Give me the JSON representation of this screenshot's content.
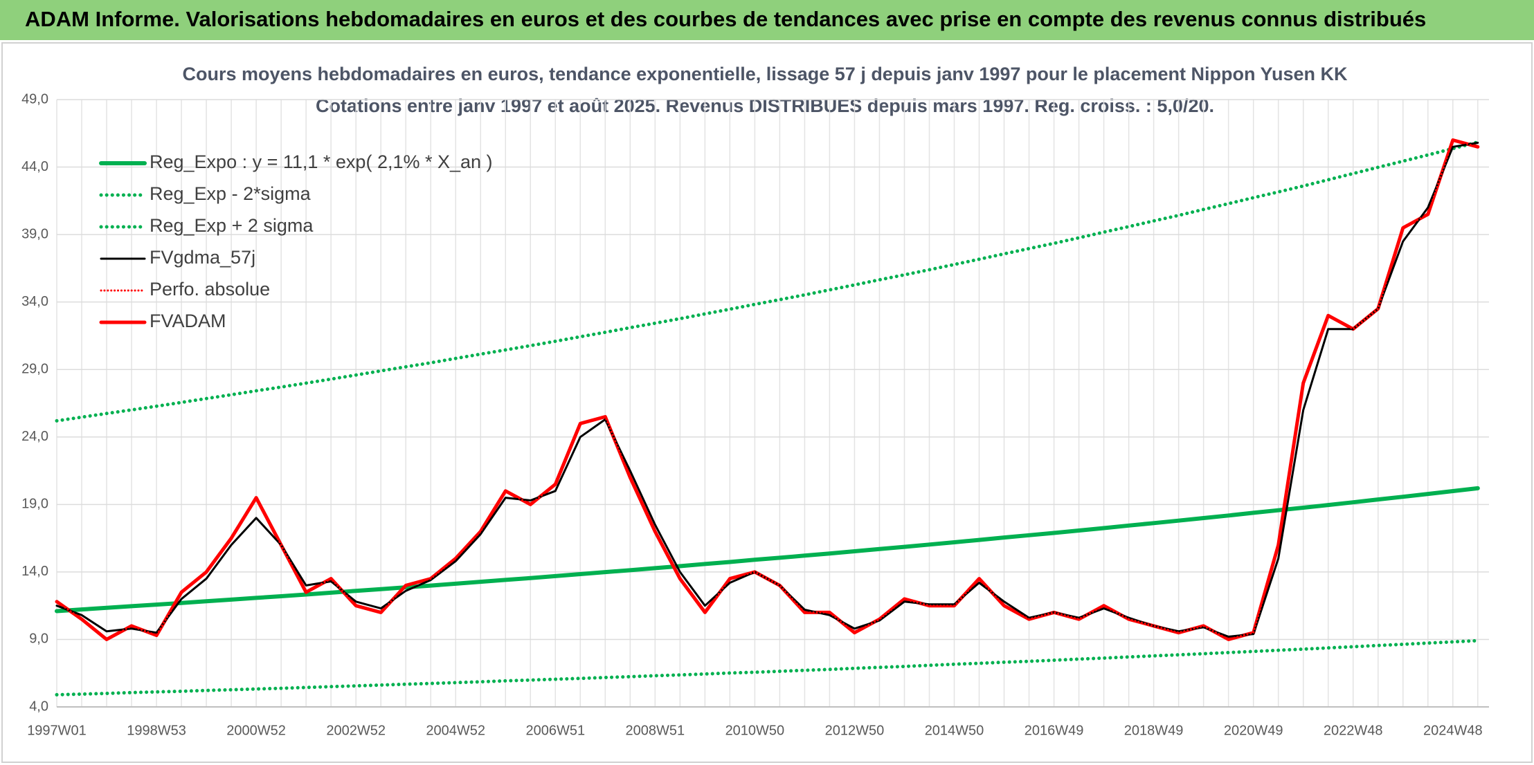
{
  "page_title": "ADAM Informe. Valorisations hebdomadaires en euros et des courbes de tendances avec prise en compte des revenus connus distribués",
  "chart_data": {
    "type": "line",
    "title": "Cours moyens hebdomadaires en euros, tendance exponentielle, lissage 57 j depuis janv 1997 pour le placement Nippon Yusen KK",
    "subtitle": "Cotations entre janv 1997 et août 2025. Revenus DISTRIBUES depuis mars 1997. Reg. croiss. : 5,0/20.",
    "categories": [
      "1997W01",
      null,
      null,
      null,
      "1998W53",
      null,
      null,
      null,
      "2000W52",
      null,
      null,
      null,
      "2002W52",
      null,
      null,
      null,
      "2004W52",
      null,
      null,
      null,
      "2006W51",
      null,
      null,
      null,
      "2008W51",
      null,
      null,
      null,
      "2010W50",
      null,
      null,
      null,
      "2012W50",
      null,
      null,
      null,
      "2014W50",
      null,
      null,
      null,
      "2016W49",
      null,
      null,
      null,
      "2018W49",
      null,
      null,
      null,
      "2020W49",
      null,
      null,
      null,
      "2022W48",
      null,
      null,
      null,
      "2024W48",
      null
    ],
    "ylim": [
      4,
      49
    ],
    "yticks": [
      {
        "value": 4,
        "label": "4,0"
      },
      {
        "value": 9,
        "label": "9,0"
      },
      {
        "value": 14,
        "label": "14,0"
      },
      {
        "value": 19,
        "label": "19,0"
      },
      {
        "value": 24,
        "label": "24,0"
      },
      {
        "value": 29,
        "label": "29,0"
      },
      {
        "value": 34,
        "label": "34,0"
      },
      {
        "value": 39,
        "label": "39,0"
      },
      {
        "value": 44,
        "label": "44,0"
      },
      {
        "value": 49,
        "label": "49,0"
      }
    ],
    "grid": true,
    "legend": "upper-left",
    "series": [
      {
        "name": "Reg_Expo : y = 11,1 * exp( 2,1% *  X_an )",
        "color": "#00b050",
        "style": "solid",
        "width": 6,
        "values": [
          11.1,
          11.22,
          11.34,
          11.46,
          11.58,
          11.7,
          11.83,
          11.95,
          12.08,
          12.2,
          12.33,
          12.46,
          12.6,
          12.73,
          12.86,
          12.99,
          13.13,
          13.27,
          13.41,
          13.55,
          13.69,
          13.84,
          13.99,
          14.13,
          14.28,
          14.43,
          14.59,
          14.74,
          14.9,
          15.05,
          15.21,
          15.37,
          15.53,
          15.7,
          15.86,
          16.03,
          16.2,
          16.37,
          16.55,
          16.72,
          16.89,
          17.07,
          17.25,
          17.44,
          17.62,
          17.8,
          17.99,
          18.18,
          18.38,
          18.57,
          18.76,
          18.96,
          19.16,
          19.37,
          19.57,
          19.78,
          19.99,
          20.2
        ]
      },
      {
        "name": "Reg_Exp - 2*sigma",
        "color": "#00b050",
        "style": "dotted",
        "width": 5,
        "values": [
          4.9,
          4.95,
          5.0,
          5.06,
          5.11,
          5.16,
          5.22,
          5.27,
          5.33,
          5.38,
          5.44,
          5.5,
          5.56,
          5.62,
          5.68,
          5.74,
          5.8,
          5.86,
          5.93,
          5.99,
          6.05,
          6.11,
          6.18,
          6.24,
          6.31,
          6.37,
          6.44,
          6.51,
          6.57,
          6.64,
          6.71,
          6.78,
          6.86,
          6.93,
          7.0,
          7.08,
          7.16,
          7.23,
          7.31,
          7.38,
          7.46,
          7.54,
          7.62,
          7.7,
          7.78,
          7.86,
          7.94,
          8.03,
          8.11,
          8.2,
          8.28,
          8.37,
          8.46,
          8.55,
          8.64,
          8.73,
          8.82,
          8.91
        ]
      },
      {
        "name": "Reg_Exp + 2 sigma",
        "color": "#00b050",
        "style": "dotted",
        "width": 5,
        "values": [
          25.2,
          25.47,
          25.74,
          26.01,
          26.28,
          26.56,
          26.85,
          27.13,
          27.42,
          27.7,
          27.99,
          28.29,
          28.59,
          28.9,
          29.2,
          29.5,
          29.82,
          30.14,
          30.45,
          30.77,
          31.09,
          31.43,
          31.76,
          32.1,
          32.43,
          32.77,
          33.12,
          33.47,
          33.83,
          34.18,
          34.53,
          34.9,
          35.27,
          35.65,
          36.02,
          36.39,
          36.78,
          37.17,
          37.57,
          37.96,
          38.35,
          38.76,
          39.18,
          39.59,
          40.01,
          40.42,
          40.86,
          41.29,
          41.73,
          42.16,
          42.6,
          43.06,
          43.52,
          43.98,
          44.44,
          44.9,
          45.37,
          45.85
        ]
      },
      {
        "name": "FVgdma_57j",
        "color": "#000000",
        "style": "solid",
        "width": 3,
        "values": [
          11.5,
          10.8,
          9.6,
          9.8,
          9.5,
          12.0,
          13.5,
          16.0,
          18.0,
          16.0,
          13.0,
          13.3,
          11.8,
          11.3,
          12.6,
          13.4,
          14.8,
          16.8,
          19.5,
          19.3,
          20.0,
          24.0,
          25.3,
          21.5,
          17.5,
          14.0,
          11.5,
          13.2,
          14.0,
          13.0,
          11.2,
          10.8,
          9.8,
          10.4,
          11.8,
          11.6,
          11.6,
          13.2,
          11.8,
          10.6,
          11.0,
          10.6,
          11.3,
          10.6,
          10.0,
          9.6,
          9.9,
          9.2,
          9.4,
          15.0,
          26.0,
          32.0,
          32.0,
          33.5,
          38.5,
          41.0,
          45.5,
          45.8
        ]
      },
      {
        "name": "Perfo. absolue",
        "color": "#ff0000",
        "style": "dotted",
        "width": 3,
        "values": [
          11.8,
          10.5,
          9.0,
          10.0,
          9.3,
          12.5,
          14.0,
          16.5,
          19.5,
          16.0,
          12.5,
          13.5,
          11.5,
          11.0,
          13.0,
          13.5,
          15.0,
          17.0,
          20.0,
          19.0,
          20.5,
          25.0,
          25.5,
          21.0,
          17.0,
          13.5,
          11.0,
          13.5,
          14.0,
          13.0,
          11.0,
          11.0,
          9.5,
          10.5,
          12.0,
          11.5,
          11.5,
          13.5,
          11.5,
          10.5,
          11.0,
          10.5,
          11.5,
          10.5,
          10.0,
          9.5,
          10.0,
          9.0,
          9.5,
          16.0,
          28.0,
          33.0,
          32.0,
          33.5,
          39.5,
          40.5,
          46.0,
          45.5
        ]
      },
      {
        "name": "FVADAM",
        "color": "#ff0000",
        "style": "solid",
        "width": 5,
        "values": [
          11.8,
          10.5,
          9.0,
          10.0,
          9.3,
          12.5,
          14.0,
          16.5,
          19.5,
          16.0,
          12.5,
          13.5,
          11.5,
          11.0,
          13.0,
          13.5,
          15.0,
          17.0,
          20.0,
          19.0,
          20.5,
          25.0,
          25.5,
          21.0,
          17.0,
          13.5,
          11.0,
          13.5,
          14.0,
          13.0,
          11.0,
          11.0,
          9.5,
          10.5,
          12.0,
          11.5,
          11.5,
          13.5,
          11.5,
          10.5,
          11.0,
          10.5,
          11.5,
          10.5,
          10.0,
          9.5,
          10.0,
          9.0,
          9.5,
          16.0,
          28.0,
          33.0,
          32.0,
          33.5,
          39.5,
          40.5,
          46.0,
          45.5
        ]
      }
    ]
  }
}
